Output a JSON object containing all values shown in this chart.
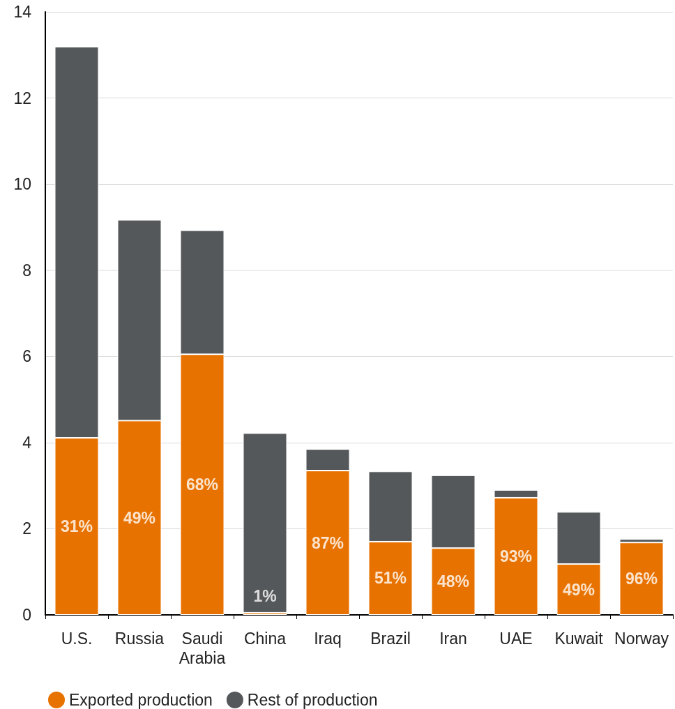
{
  "chart_data": {
    "type": "bar",
    "stacked": true,
    "categories": [
      "U.S.",
      "Russia",
      "Saudi\nArabia",
      "China",
      "Iraq",
      "Brazil",
      "Iran",
      "UAE",
      "Kuwait",
      "Norway"
    ],
    "series": [
      {
        "name": "Exported production",
        "color": "#e87200",
        "values": [
          4.11,
          4.51,
          6.05,
          0.05,
          3.35,
          1.7,
          1.55,
          2.72,
          1.18,
          1.68
        ]
      },
      {
        "name": "Rest of production",
        "color": "#55585a",
        "values": [
          9.08,
          4.66,
          2.88,
          4.17,
          0.5,
          1.63,
          1.69,
          0.18,
          1.21,
          0.08
        ]
      }
    ],
    "annotations": [
      "31%",
      "49%",
      "68%",
      "1%",
      "87%",
      "51%",
      "48%",
      "93%",
      "49%",
      "96%"
    ],
    "ylim": [
      0,
      14
    ],
    "yticks": [
      0,
      2,
      4,
      6,
      8,
      10,
      12,
      14
    ],
    "grid": "y",
    "legend": "bottom left"
  }
}
